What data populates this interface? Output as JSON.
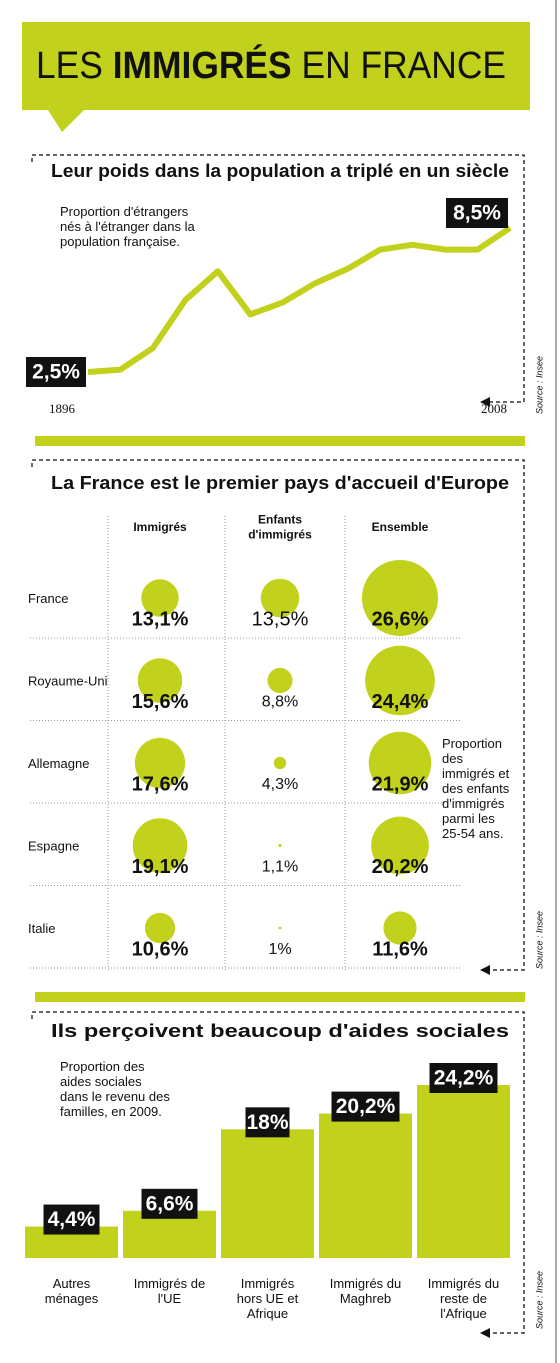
{
  "header": {
    "title": [
      "LES",
      "IMMIGRÉS",
      "EN FRANCE"
    ]
  },
  "chart_data": [
    {
      "type": "line",
      "title": "Leur poids dans la population a triplé en un siècle",
      "annotation": "Proportion d'étrangers nés à l'étranger dans la population française.",
      "categories": [
        "1896",
        null,
        null,
        null,
        null,
        null,
        null,
        null,
        null,
        null,
        null,
        null,
        null,
        "2008"
      ],
      "values": [
        2.5,
        2.6,
        3.5,
        5.5,
        6.7,
        4.9,
        5.4,
        6.2,
        6.8,
        7.6,
        7.8,
        7.6,
        7.6,
        8.5
      ],
      "value_labels": [
        "2,5%",
        null,
        null,
        null,
        null,
        null,
        null,
        null,
        null,
        null,
        null,
        null,
        null,
        "8,5%"
      ],
      "color": "#c2d11b",
      "source": "Source : Insee"
    },
    {
      "type": "bubble",
      "title": "La France est le premier pays d'accueil d'Europe",
      "annotation": "Proportion des immigrés et des enfants d'immigrés parmi les 25-54 ans.",
      "categories": [
        "France",
        "Royaume-Uni",
        "Allemagne",
        "Espagne",
        "Italie"
      ],
      "series": [
        {
          "name": "Immigrés",
          "color": "#c2d11b",
          "values": [
            13.1,
            15.6,
            17.6,
            19.1,
            10.6
          ],
          "value_labels": [
            "13,1%",
            "15,6%",
            "17,6%",
            "19,1%",
            "10,6%"
          ]
        },
        {
          "name": "Enfants d'immigrés",
          "color": "#c2d11b",
          "values": [
            13.5,
            8.8,
            4.3,
            1.1,
            1
          ],
          "value_labels": [
            "13,5%",
            "8,8%",
            "4,3%",
            "1,1%",
            "1%"
          ]
        },
        {
          "name": "Ensemble",
          "color": "#c2d11b",
          "values": [
            26.6,
            24.4,
            21.9,
            20.2,
            11.6
          ],
          "value_labels": [
            "26,6%",
            "24,4%",
            "21,9%",
            "20,2%",
            "11,6%"
          ]
        }
      ],
      "source": "Source : Insee"
    },
    {
      "type": "bar",
      "title": "Ils perçoivent beaucoup d'aides sociales",
      "annotation": "Proportion des aides sociales dans le revenu des familles, en 2009.",
      "categories": [
        "Autres ménages",
        "Immigrés de l'UE",
        "Immigrés hors UE et Afrique",
        "Immigrés du Maghreb",
        "Immigrés du reste de l'Afrique"
      ],
      "values": [
        4.4,
        6.6,
        18,
        20.2,
        24.2
      ],
      "value_labels": [
        "4,4%",
        "6,6%",
        "18%",
        "20,2%",
        "24,2%"
      ],
      "color": "#c2d11b",
      "source": "Source : Insee"
    }
  ]
}
